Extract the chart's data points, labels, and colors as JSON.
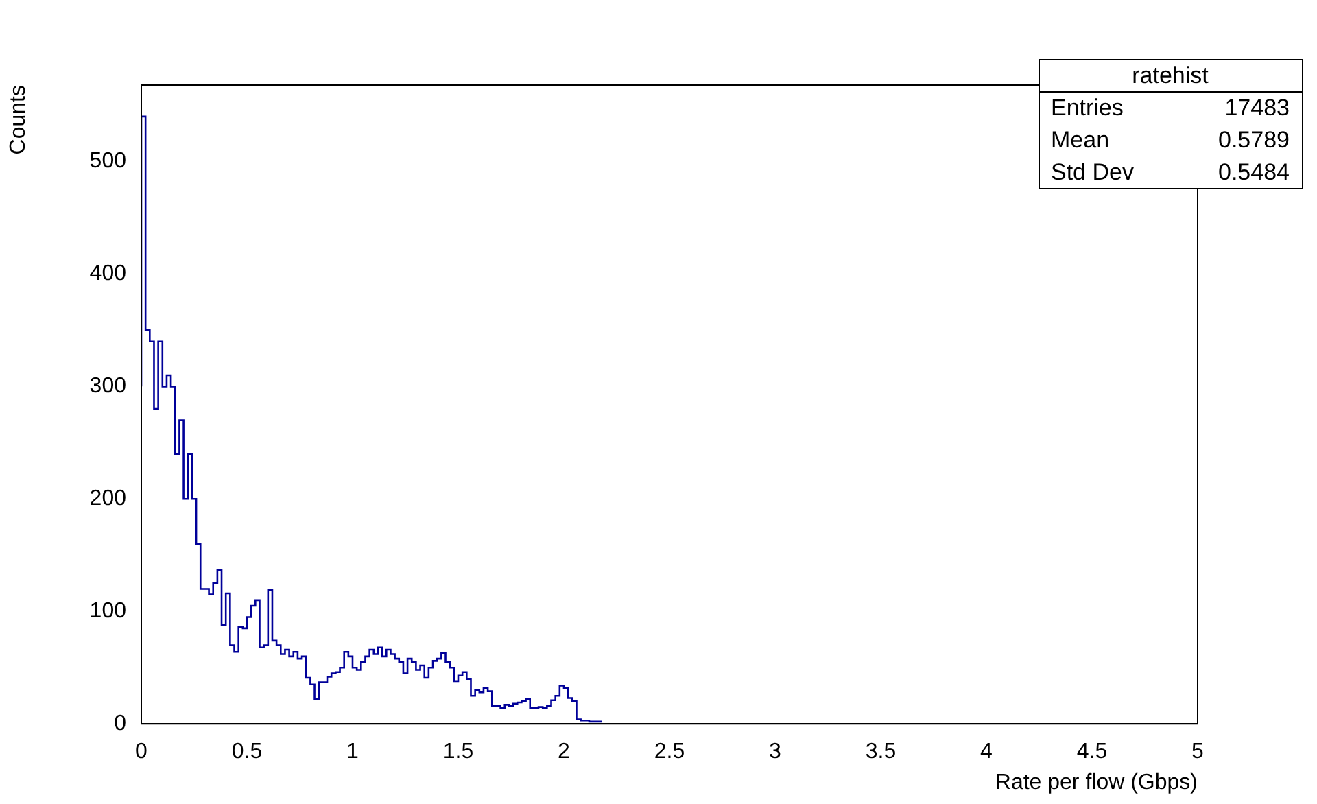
{
  "chart_data": {
    "type": "histogram",
    "xlabel": "Rate per flow (Gbps)",
    "ylabel": "Counts",
    "bins": [
      0,
      0.02,
      0.04,
      0.06,
      0.08,
      0.1,
      0.12,
      0.14,
      0.16,
      0.18,
      0.2,
      0.22,
      0.24,
      0.26,
      0.28,
      0.3,
      0.32,
      0.34,
      0.36,
      0.38,
      0.4,
      0.42,
      0.44,
      0.46,
      0.48,
      0.5,
      0.52,
      0.54,
      0.56,
      0.58,
      0.6,
      0.62,
      0.64,
      0.66,
      0.68,
      0.7,
      0.72,
      0.74,
      0.76,
      0.78,
      0.8,
      0.82,
      0.84,
      0.86,
      0.88,
      0.9,
      0.92,
      0.94,
      0.96,
      0.98,
      1,
      1.02,
      1.04,
      1.06,
      1.08,
      1.1,
      1.12,
      1.14,
      1.16,
      1.18,
      1.2,
      1.22,
      1.24,
      1.26,
      1.28,
      1.3,
      1.32,
      1.34,
      1.36,
      1.38,
      1.4,
      1.42,
      1.44,
      1.46,
      1.48,
      1.5,
      1.52,
      1.54,
      1.56,
      1.58,
      1.6,
      1.62,
      1.64,
      1.66,
      1.68,
      1.7,
      1.72,
      1.74,
      1.76,
      1.78,
      1.8,
      1.82,
      1.84,
      1.86,
      1.88,
      1.9,
      1.92,
      1.94,
      1.96,
      1.98,
      2,
      2.02,
      2.04,
      2.06,
      2.08,
      2.1,
      2.12,
      2.14,
      2.16,
      2.18
    ],
    "values": [
      300,
      540,
      350,
      340,
      280,
      340,
      300,
      310,
      300,
      240,
      270,
      200,
      240,
      200,
      160,
      120,
      120,
      115,
      125,
      137,
      88,
      116,
      70,
      64,
      86,
      85,
      95,
      105,
      110,
      68,
      70,
      119,
      74,
      70,
      62,
      66,
      60,
      64,
      58,
      60,
      41,
      35,
      22,
      37,
      37,
      42,
      45,
      46,
      50,
      64,
      60,
      50,
      48,
      55,
      60,
      66,
      62,
      68,
      60,
      66,
      62,
      58,
      55,
      45,
      58,
      55,
      48,
      52,
      41,
      50,
      56,
      58,
      63,
      55,
      50,
      38,
      43,
      46,
      40,
      25,
      30,
      28,
      32,
      29,
      16,
      16,
      14,
      17,
      16,
      18,
      19,
      20,
      22,
      14,
      14,
      15,
      14,
      16,
      21,
      25,
      34,
      32,
      23,
      20,
      4,
      3,
      3,
      2,
      2
    ],
    "color": "#000099",
    "xlim": [
      0,
      5
    ],
    "xticks": [
      0,
      0.5,
      1,
      1.5,
      2,
      2.5,
      3,
      3.5,
      4,
      4.5,
      5
    ],
    "ylim": [
      0,
      568
    ],
    "yticks": [
      0,
      100,
      200,
      300,
      400,
      500
    ],
    "annotations": [
      "ratehist",
      "Entries",
      "17483",
      "Mean",
      "0.5789",
      "Std Dev",
      "0.5484"
    ]
  }
}
